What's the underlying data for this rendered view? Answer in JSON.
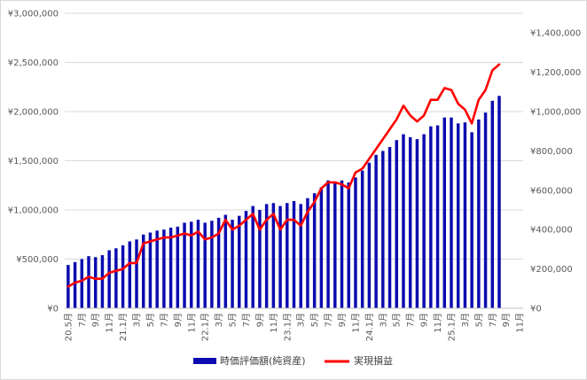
{
  "chart_data": {
    "type": "bar+line",
    "title": "",
    "categories": [
      "20.5月",
      "6月",
      "7月",
      "8月",
      "9月",
      "10月",
      "11月",
      "12月",
      "21.1月",
      "2月",
      "3月",
      "4月",
      "5月",
      "6月",
      "7月",
      "8月",
      "9月",
      "10月",
      "11月",
      "12月",
      "22.1月",
      "2月",
      "3月",
      "4月",
      "5月",
      "6月",
      "7月",
      "8月",
      "9月",
      "10月",
      "11月",
      "12月",
      "23.1月",
      "2月",
      "3月",
      "4月",
      "5月",
      "6月",
      "7月",
      "8月",
      "9月",
      "10月",
      "11月",
      "12月",
      "24.1月",
      "2月",
      "3月",
      "4月",
      "5月",
      "6月",
      "7月",
      "8月",
      "9月",
      "10月",
      "11月",
      "12月",
      "25.1月",
      "2月",
      "3月",
      "4月",
      "5月",
      "6月",
      "7月",
      "8月",
      "9月",
      "10月",
      "11月"
    ],
    "x_tick_labels": [
      "20.5月",
      "7月",
      "9月",
      "11月",
      "21.1月",
      "3月",
      "5月",
      "7月",
      "9月",
      "11月",
      "22.1月",
      "3月",
      "5月",
      "7月",
      "9月",
      "11月",
      "23.1月",
      "3月",
      "5月",
      "7月",
      "9月",
      "11月",
      "24.1月",
      "3月",
      "5月",
      "7月",
      "9月",
      "11月",
      "25.1月",
      "3月",
      "5月",
      "7月",
      "9月",
      "11月"
    ],
    "y_left": {
      "ticks": [
        "¥0",
        "¥500,000",
        "¥1,000,000",
        "¥1,500,000",
        "¥2,000,000",
        "¥2,500,000",
        "¥3,000,000"
      ],
      "range": [
        0,
        3000000
      ]
    },
    "y_right": {
      "ticks": [
        "¥0",
        "¥200,000",
        "¥400,000",
        "¥600,000",
        "¥800,000",
        "¥1,000,000",
        "¥1,200,000",
        "¥1,400,000"
      ],
      "range": [
        0,
        1500000
      ]
    },
    "grid": true,
    "legend_position": "bottom",
    "series": [
      {
        "name": "時価評価額(純資産)",
        "type": "bar",
        "axis": "left",
        "color": "#0b0bb0",
        "values": [
          440000,
          470000,
          500000,
          530000,
          520000,
          540000,
          590000,
          610000,
          640000,
          680000,
          700000,
          750000,
          770000,
          790000,
          800000,
          820000,
          830000,
          870000,
          880000,
          900000,
          870000,
          890000,
          920000,
          950000,
          900000,
          940000,
          990000,
          1040000,
          1000000,
          1060000,
          1070000,
          1040000,
          1070000,
          1090000,
          1060000,
          1120000,
          1170000,
          1230000,
          1300000,
          1290000,
          1300000,
          1280000,
          1330000,
          1400000,
          1480000,
          1560000,
          1600000,
          1640000,
          1710000,
          1770000,
          1740000,
          1720000,
          1770000,
          1850000,
          1860000,
          1940000,
          1940000,
          1880000,
          1890000,
          1790000,
          1920000,
          1990000,
          2110000,
          2160000,
          null,
          null,
          null
        ]
      },
      {
        "name": "実現損益",
        "type": "line",
        "axis": "right",
        "color": "#ff0000",
        "values": [
          110000,
          130000,
          140000,
          160000,
          150000,
          150000,
          180000,
          190000,
          200000,
          230000,
          230000,
          330000,
          340000,
          350000,
          360000,
          360000,
          370000,
          380000,
          370000,
          390000,
          350000,
          360000,
          380000,
          450000,
          400000,
          420000,
          450000,
          480000,
          400000,
          450000,
          480000,
          400000,
          450000,
          450000,
          420000,
          490000,
          540000,
          610000,
          640000,
          640000,
          630000,
          610000,
          690000,
          710000,
          760000,
          810000,
          860000,
          910000,
          960000,
          1030000,
          980000,
          950000,
          980000,
          1060000,
          1060000,
          1120000,
          1110000,
          1040000,
          1010000,
          940000,
          1060000,
          1110000,
          1210000,
          1240000,
          null,
          null,
          null
        ]
      }
    ]
  }
}
